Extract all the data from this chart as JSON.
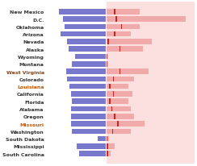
{
  "states": [
    "New Mexico",
    "D.C.",
    "Oklahoma",
    "Arizona",
    "Nevada",
    "Alaska",
    "Wyoming",
    "Montana",
    "West Virginia",
    "Colorado",
    "Louisiana",
    "California",
    "Florida",
    "Alabama",
    "Oregon",
    "Missouri",
    "Washington",
    "South Dakota",
    "Mississippi",
    "South Carolina"
  ],
  "blue_values": [
    52,
    48,
    46,
    50,
    43,
    41,
    34,
    38,
    44,
    43,
    40,
    39,
    38,
    39,
    39,
    39,
    38,
    9,
    32,
    30
  ],
  "pink_values": [
    38,
    90,
    38,
    28,
    52,
    42,
    2,
    2,
    48,
    32,
    26,
    30,
    26,
    28,
    32,
    44,
    28,
    4,
    10,
    6
  ],
  "red_markers": [
    10,
    12,
    18,
    10,
    3,
    16,
    1,
    1,
    16,
    9,
    5,
    9,
    5,
    7,
    10,
    14,
    8,
    1,
    2,
    2
  ],
  "blue_color": "#7878cc",
  "pink_color": "#f0aaaa",
  "pink_bg_color": "#fce0e0",
  "red_color": "#cc2222",
  "background_color": "#ffffff",
  "label_colors": {
    "West Virginia": "#8B4513",
    "Louisiana": "#cc5500",
    "Missouri": "#cc5500"
  },
  "xlim_left": -60,
  "xlim_right": 100,
  "bar_height": 0.72,
  "fontsize": 4.5
}
